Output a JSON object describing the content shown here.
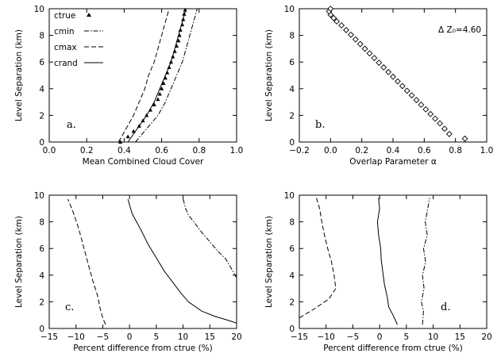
{
  "chart_data": [
    {
      "id": "a",
      "type": "line",
      "panel_label": "a.",
      "xlabel": "Mean Combined Cloud Cover",
      "ylabel": "Level Separation (km)",
      "xlim": [
        0.0,
        1.0
      ],
      "ylim": [
        0,
        10
      ],
      "xticks": [
        0.0,
        0.2,
        0.4,
        0.6,
        0.8,
        1.0
      ],
      "xtick_labels": [
        "0.0",
        "0.2",
        "0.4",
        "0.6",
        "0.8",
        "1.0"
      ],
      "yticks": [
        0,
        2,
        4,
        6,
        8,
        10
      ],
      "ytick_labels": [
        "0",
        "2",
        "4",
        "6",
        "8",
        "10"
      ],
      "legend": [
        {
          "label": "ctrue",
          "style": "triangle"
        },
        {
          "label": "cmin",
          "style": "dashdot"
        },
        {
          "label": "cmax",
          "style": "dashed"
        },
        {
          "label": "crand",
          "style": "solid"
        }
      ],
      "series": [
        {
          "name": "ctrue",
          "style": "triangle",
          "x": [
            0.38,
            0.42,
            0.45,
            0.48,
            0.5,
            0.52,
            0.54,
            0.56,
            0.58,
            0.59,
            0.6,
            0.61,
            0.62,
            0.63,
            0.64,
            0.65,
            0.66,
            0.67,
            0.68,
            0.69,
            0.695,
            0.7,
            0.71,
            0.715,
            0.72,
            0.725
          ],
          "y": [
            0.0,
            0.4,
            0.8,
            1.2,
            1.6,
            2.0,
            2.4,
            2.8,
            3.2,
            3.6,
            4.0,
            4.4,
            4.8,
            5.2,
            5.6,
            6.0,
            6.4,
            6.8,
            7.2,
            7.6,
            8.0,
            8.4,
            8.8,
            9.2,
            9.6,
            9.9
          ]
        },
        {
          "name": "cmin",
          "style": "dashdot",
          "x": [
            0.46,
            0.52,
            0.58,
            0.62,
            0.65,
            0.68,
            0.71,
            0.73,
            0.75,
            0.77,
            0.79
          ],
          "y": [
            0,
            1,
            2,
            3,
            4,
            5,
            6,
            7,
            8,
            9,
            10
          ]
        },
        {
          "name": "cmax",
          "style": "dashed",
          "x": [
            0.37,
            0.41,
            0.45,
            0.48,
            0.51,
            0.53,
            0.56,
            0.58,
            0.6,
            0.62,
            0.64
          ],
          "y": [
            0,
            1,
            2,
            3,
            4,
            5,
            6,
            7,
            8,
            9,
            10
          ]
        },
        {
          "name": "crand",
          "style": "solid",
          "x": [
            0.42,
            0.47,
            0.52,
            0.56,
            0.59,
            0.62,
            0.65,
            0.67,
            0.69,
            0.71,
            0.73
          ],
          "y": [
            0,
            1,
            2,
            3,
            4,
            5,
            6,
            7,
            8,
            9,
            10
          ]
        }
      ]
    },
    {
      "id": "b",
      "type": "scatter",
      "panel_label": "b.",
      "annotation": "Δ Z₀=4.60",
      "xlabel": "Overlap Parameter α",
      "ylabel": "Level Separation (km)",
      "xlim": [
        -0.2,
        1.0
      ],
      "ylim": [
        0,
        10
      ],
      "xticks": [
        -0.2,
        0.0,
        0.2,
        0.4,
        0.6,
        0.8,
        1.0
      ],
      "xtick_labels": [
        "−0.2",
        "0.0",
        "0.2",
        "0.4",
        "0.6",
        "0.8",
        "1.0"
      ],
      "yticks": [
        0,
        2,
        4,
        6,
        8,
        10
      ],
      "ytick_labels": [
        "0",
        "2",
        "4",
        "6",
        "8",
        "10"
      ],
      "series": [
        {
          "name": "alpha",
          "style": "diamond",
          "x": [
            0.86,
            0.76,
            0.73,
            0.7,
            0.67,
            0.64,
            0.61,
            0.58,
            0.55,
            0.52,
            0.49,
            0.46,
            0.43,
            0.4,
            0.37,
            0.34,
            0.31,
            0.28,
            0.25,
            0.22,
            0.19,
            0.16,
            0.13,
            0.1,
            0.07,
            0.04,
            0.02,
            0.0,
            -0.01,
            0.0
          ],
          "y": [
            0.25,
            0.6,
            1.0,
            1.4,
            1.75,
            2.1,
            2.45,
            2.8,
            3.15,
            3.5,
            3.85,
            4.2,
            4.55,
            4.9,
            5.25,
            5.6,
            5.95,
            6.3,
            6.65,
            7.0,
            7.35,
            7.7,
            8.05,
            8.4,
            8.75,
            9.05,
            9.3,
            9.55,
            9.8,
            10.0
          ]
        }
      ]
    },
    {
      "id": "c",
      "type": "line",
      "panel_label": "c.",
      "xlabel": "Percent difference from ctrue (%)",
      "ylabel": "Level Separation (km)",
      "xlim": [
        -15,
        20
      ],
      "ylim": [
        0,
        10
      ],
      "xticks": [
        -15,
        -10,
        -5,
        0,
        5,
        10,
        15,
        20
      ],
      "xtick_labels": [
        "−15",
        "−10",
        "−5",
        "0",
        "5",
        "10",
        "15",
        "20"
      ],
      "yticks": [
        0,
        2,
        4,
        6,
        8,
        10
      ],
      "ytick_labels": [
        "0",
        "2",
        "4",
        "6",
        "8",
        "10"
      ],
      "series": [
        {
          "name": "cmin",
          "style": "dashdot",
          "x": [
            10.0,
            10.5,
            11.0,
            12.0,
            13.5,
            15.0,
            16.5,
            18.0,
            19.0,
            20.0
          ],
          "y": [
            9.7,
            9.0,
            8.5,
            8.0,
            7.2,
            6.5,
            5.8,
            5.2,
            4.5,
            3.8
          ]
        },
        {
          "name": "cmax",
          "style": "dashed",
          "x": [
            -4.5,
            -5.0,
            -5.5,
            -6.0,
            -6.8,
            -7.5,
            -8.5,
            -9.5,
            -10.5,
            -11.5
          ],
          "y": [
            0.3,
            0.8,
            1.5,
            2.5,
            3.5,
            4.5,
            6.0,
            7.5,
            8.7,
            9.7
          ]
        },
        {
          "name": "crand",
          "style": "solid",
          "x": [
            20.0,
            18.5,
            16.0,
            13.5,
            11.0,
            9.5,
            8.0,
            6.5,
            5.0,
            3.5,
            2.0,
            0.5,
            -0.3
          ],
          "y": [
            0.4,
            0.6,
            0.9,
            1.3,
            2.0,
            2.7,
            3.5,
            4.3,
            5.3,
            6.3,
            7.5,
            8.6,
            9.7
          ]
        }
      ]
    },
    {
      "id": "d",
      "type": "line",
      "panel_label": "d.",
      "xlabel": "Percent difference from ctrue (%)",
      "ylabel": "Level Separation (km)",
      "xlim": [
        -15,
        20
      ],
      "ylim": [
        0,
        10
      ],
      "xticks": [
        -15,
        -10,
        -5,
        0,
        5,
        10,
        15,
        20
      ],
      "xtick_labels": [
        "−15",
        "−10",
        "−5",
        "0",
        "5",
        "10",
        "15",
        "20"
      ],
      "yticks": [
        0,
        2,
        4,
        6,
        8,
        10
      ],
      "ytick_labels": [
        "0",
        "2",
        "4",
        "6",
        "8",
        "10"
      ],
      "series": [
        {
          "name": "cmin",
          "style": "dashdot",
          "x": [
            8.0,
            8.2,
            7.8,
            8.3,
            8.0,
            8.6,
            8.2,
            8.9,
            8.5,
            9.0,
            9.3
          ],
          "y": [
            0.3,
            1.3,
            2.0,
            3.0,
            4.0,
            5.0,
            6.0,
            7.0,
            8.0,
            9.0,
            9.8
          ]
        },
        {
          "name": "cmax",
          "style": "dashed",
          "x": [
            -15.0,
            -12.5,
            -9.5,
            -8.2,
            -8.5,
            -9.0,
            -9.7,
            -10.3,
            -10.8,
            -11.2,
            -11.6,
            -11.8
          ],
          "y": [
            0.8,
            1.4,
            2.2,
            3.0,
            4.0,
            5.0,
            6.0,
            7.0,
            8.0,
            9.0,
            9.5,
            9.8
          ]
        },
        {
          "name": "crand",
          "style": "solid",
          "x": [
            3.3,
            2.5,
            1.7,
            1.4,
            0.9,
            0.6,
            0.3,
            0.2,
            -0.2,
            -0.4,
            0.0,
            -0.2
          ],
          "y": [
            0.3,
            1.0,
            1.6,
            2.4,
            3.3,
            4.2,
            5.1,
            6.0,
            7.0,
            8.0,
            9.0,
            9.8
          ]
        }
      ]
    }
  ]
}
